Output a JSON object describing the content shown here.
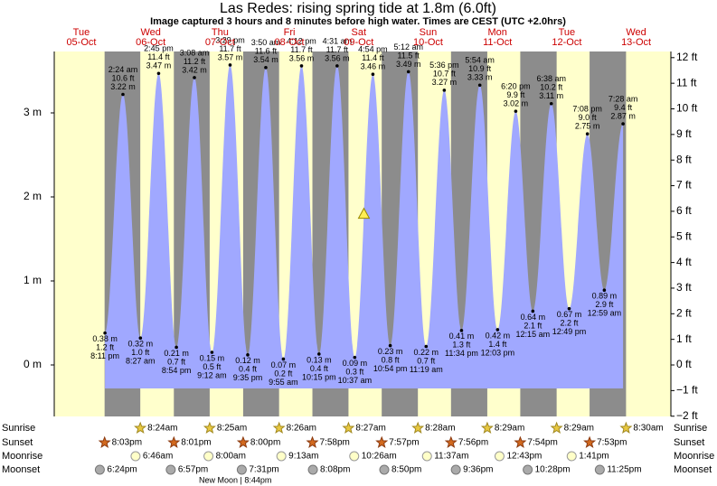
{
  "chart_data": {
    "type": "tide",
    "title": "Las Redes: rising  spring tide at 1.8m (6.0ft)",
    "subtitle": "Image captured 3 hours and 8 minutes before high water. Times are CEST (UTC +2.0hrs)",
    "days": [
      "Tue",
      "Wed",
      "Thu",
      "Fri",
      "Sat",
      "Sun",
      "Mon",
      "Tue",
      "Wed"
    ],
    "dates": [
      "05-Oct",
      "06-Oct",
      "07-Oct",
      "08-Oct",
      "09-Oct",
      "10-Oct",
      "11-Oct",
      "12-Oct",
      "13-Oct"
    ],
    "ylim": [
      -0.613,
      3.731
    ],
    "yticks": [
      {
        "value": 0,
        "label": "0 m"
      },
      {
        "value": 1,
        "label": "1 m"
      },
      {
        "value": 2,
        "label": "2 m"
      },
      {
        "value": 3,
        "label": "3 m"
      }
    ],
    "y2lim": [
      -2.01,
      12.24
    ],
    "y2ticks": [
      {
        "value": -2,
        "label": "−2 ft"
      },
      {
        "value": -1,
        "label": "−1 ft"
      },
      {
        "value": 0,
        "label": "0 ft"
      },
      {
        "value": 1,
        "label": "1 ft"
      },
      {
        "value": 2,
        "label": "2 ft"
      },
      {
        "value": 3,
        "label": "3 ft"
      },
      {
        "value": 4,
        "label": "4 ft"
      },
      {
        "value": 5,
        "label": "5 ft"
      },
      {
        "value": 6,
        "label": "6 ft"
      },
      {
        "value": 7,
        "label": "7 ft"
      },
      {
        "value": 8,
        "label": "8 ft"
      },
      {
        "value": 9,
        "label": "9 ft"
      },
      {
        "value": 10,
        "label": "10 ft"
      },
      {
        "value": 11,
        "label": "11 ft"
      },
      {
        "value": 12,
        "label": "12 ft"
      }
    ],
    "tides": {
      "color": "#a0a8ff",
      "times": [
        "8:11 pm",
        "2:24 am",
        "8:27 am",
        "2:45 pm",
        "8:54 pm",
        "3:08 am",
        "9:12 am",
        "3:29 pm",
        "9:35 pm",
        "3:50 am",
        "9:55 am",
        "4:12 pm",
        "10:15 pm",
        "4:31 am",
        "10:37 am",
        "4:54 pm",
        "10:54 pm",
        "5:12 am",
        "11:19 am",
        "5:36 pm",
        "11:34 pm",
        "5:54 am",
        "12:03 pm",
        "6:20 pm",
        "12:15 am",
        "6:38 am",
        "12:49 pm",
        "7:08 pm",
        "12:59 am",
        "7:28 am"
      ],
      "values": [
        0.38,
        3.22,
        0.32,
        3.47,
        0.21,
        3.42,
        0.15,
        3.57,
        0.12,
        3.54,
        0.07,
        3.56,
        0.13,
        3.56,
        0.09,
        3.46,
        0.23,
        3.49,
        0.22,
        3.27,
        0.41,
        3.33,
        0.42,
        3.02,
        0.64,
        3.11,
        0.67,
        2.75,
        0.89,
        2.87
      ],
      "value_labels": [
        "0.38 m",
        "3.22 m",
        "0.32 m",
        "3.47 m",
        "0.21 m",
        "3.42 m",
        "0.15 m",
        "3.57 m",
        "0.12 m",
        "3.54 m",
        "0.07 m",
        "3.56 m",
        "0.13 m",
        "3.56 m",
        "0.09 m",
        "3.46 m",
        "0.23 m",
        "3.49 m",
        "0.22 m",
        "3.27 m",
        "0.41 m",
        "3.33 m",
        "0.42 m",
        "3.02 m",
        "0.64 m",
        "3.11 m",
        "0.67 m",
        "2.75 m",
        "0.89 m",
        "2.87 m"
      ],
      "ft_labels": [
        "1.2 ft",
        "10.6 ft",
        "1.0 ft",
        "11.4 ft",
        "0.7 ft",
        "11.2 ft",
        "0.5 ft",
        "11.7 ft",
        "0.4 ft",
        "11.6 ft",
        "0.2 ft",
        "11.7 ft",
        "0.4 ft",
        "11.7 ft",
        "0.3 ft",
        "11.4 ft",
        "0.8 ft",
        "11.5 ft",
        "0.7 ft",
        "10.7 ft",
        "1.3 ft",
        "10.9 ft",
        "1.4 ft",
        "9.9 ft",
        "2.1 ft",
        "10.2 ft",
        "2.2 ft",
        "9.0 ft",
        "2.9 ft",
        "9.4 ft"
      ]
    },
    "now": {
      "value": 1.8
    },
    "sun_moon": [
      {
        "name": "Sunrise",
        "times": [
          null,
          "8:24am",
          "8:25am",
          "8:26am",
          "8:27am",
          "8:28am",
          "8:29am",
          "8:29am",
          "8:30am"
        ]
      },
      {
        "name": "Sunset",
        "times": [
          "8:03pm",
          "8:01pm",
          "8:00pm",
          "7:58pm",
          "7:57pm",
          "7:56pm",
          "7:54pm",
          "7:53pm",
          null
        ]
      },
      {
        "name": "Moonrise",
        "times": [
          null,
          "6:46am",
          "8:00am",
          "9:13am",
          "10:26am",
          "11:37am",
          "12:43pm",
          "1:41pm",
          null
        ]
      },
      {
        "name": "Moonset",
        "times": [
          "6:24pm",
          "6:57pm",
          "7:31pm",
          "8:08pm",
          "8:50pm",
          "9:36pm",
          "10:28pm",
          "11:25pm",
          null
        ]
      }
    ],
    "moon_phase": "New Moon | 8:44pm"
  }
}
